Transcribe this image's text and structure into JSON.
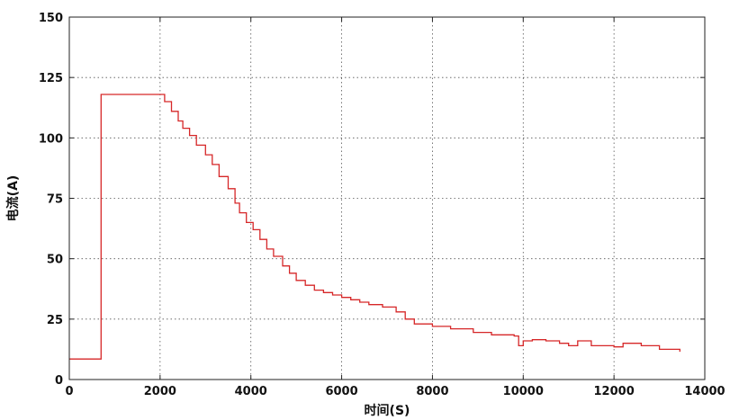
{
  "chart_data": {
    "type": "line",
    "title": "",
    "xlabel": "时间(S)",
    "ylabel": "电流(A)",
    "xlim": [
      0,
      14000
    ],
    "ylim": [
      0,
      150
    ],
    "xticks": [
      0,
      2000,
      4000,
      6000,
      8000,
      10000,
      12000,
      14000
    ],
    "yticks": [
      0,
      25,
      50,
      75,
      100,
      125,
      150
    ],
    "grid": true,
    "grid_style": "dotted",
    "legend": "none",
    "line_color": "#d62728",
    "series": [
      {
        "name": "",
        "step": true,
        "x": [
          0,
          700,
          700,
          2000,
          2100,
          2250,
          2400,
          2500,
          2650,
          2800,
          3000,
          3150,
          3300,
          3500,
          3650,
          3750,
          3900,
          4050,
          4200,
          4350,
          4500,
          4700,
          4850,
          5000,
          5200,
          5400,
          5600,
          5800,
          6000,
          6200,
          6400,
          6600,
          6900,
          7200,
          7400,
          7600,
          8000,
          8400,
          8900,
          9300,
          9800,
          9900,
          10000,
          10200,
          10500,
          10800,
          11000,
          11200,
          11500,
          12000,
          12200,
          12600,
          13000,
          13450
        ],
        "y": [
          8.5,
          8.5,
          118,
          118,
          115,
          111,
          107,
          104,
          101,
          97,
          93,
          89,
          84,
          79,
          73,
          69,
          65,
          62,
          58,
          54,
          51,
          47,
          44,
          41,
          39,
          37,
          36,
          35,
          34,
          33,
          32,
          31,
          30,
          28,
          25,
          23,
          22,
          21,
          19.5,
          18.5,
          18,
          14,
          16,
          16.5,
          16,
          15,
          14,
          16,
          14,
          13.5,
          15,
          14,
          12.5,
          11.5
        ]
      }
    ]
  }
}
